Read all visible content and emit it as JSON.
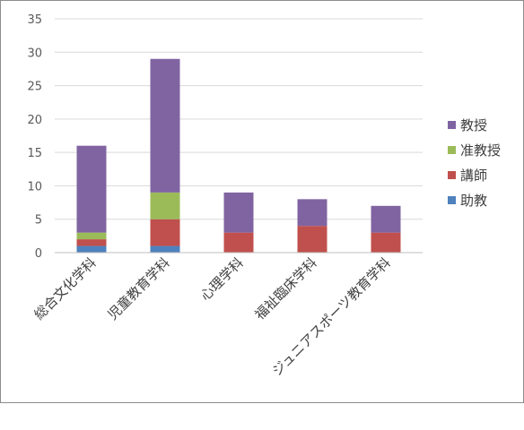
{
  "chart_data": {
    "type": "bar",
    "stacked": true,
    "categories": [
      "総合文化学科",
      "児童教育学科",
      "心理学科",
      "福祉臨床学科",
      "ジュニアスポーツ教育学科"
    ],
    "series": [
      {
        "name": "助教",
        "color": "#4f81bd",
        "values": [
          1,
          1,
          0,
          0,
          0
        ]
      },
      {
        "name": "講師",
        "color": "#c0504d",
        "values": [
          1,
          4,
          3,
          4,
          3
        ]
      },
      {
        "name": "准教授",
        "color": "#9bbb59",
        "values": [
          1,
          4,
          0,
          0,
          0
        ]
      },
      {
        "name": "教授",
        "color": "#8064a2",
        "values": [
          13,
          20,
          6,
          4,
          4
        ]
      }
    ],
    "legend_order": [
      "教授",
      "准教授",
      "講師",
      "助教"
    ],
    "ylim": [
      0,
      35
    ],
    "yticks": [
      0,
      5,
      10,
      15,
      20,
      25,
      30,
      35
    ],
    "grid": true,
    "legend_position": "right"
  }
}
